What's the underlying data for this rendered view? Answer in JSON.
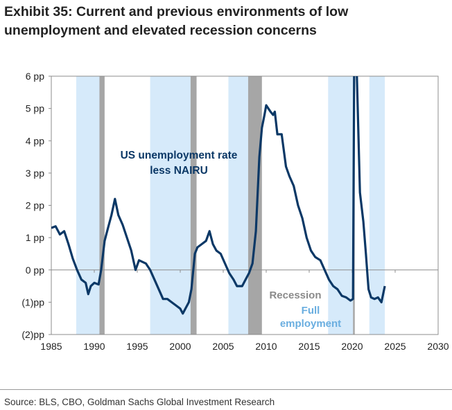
{
  "title": "Exhibit 35: Current and previous environments of low unemployment and elevated recession concerns",
  "source": "Source: BLS, CBO, Goldman Sachs Global Investment Research",
  "chart_data": {
    "type": "line",
    "title": "Exhibit 35: Current and previous environments of low unemployment and elevated recession concerns",
    "xlabel": "",
    "ylabel": "",
    "xlim": [
      1985,
      2030
    ],
    "ylim": [
      -2,
      6
    ],
    "x_ticks": [
      "1985",
      "1990",
      "1995",
      "2000",
      "2005",
      "2010",
      "2015",
      "2020",
      "2025",
      "2030"
    ],
    "y_ticks": [
      {
        "value": 6,
        "label": "6 pp"
      },
      {
        "value": 5,
        "label": "5 pp"
      },
      {
        "value": 4,
        "label": "4 pp"
      },
      {
        "value": 3,
        "label": "3 pp"
      },
      {
        "value": 2,
        "label": "2 pp"
      },
      {
        "value": 1,
        "label": "1 pp"
      },
      {
        "value": 0,
        "label": "0 pp"
      },
      {
        "value": -1,
        "label": "(1)pp"
      },
      {
        "value": -2,
        "label": "(2)pp"
      }
    ],
    "grid": false,
    "series": [
      {
        "name": "US unemployment rate less NAIRU",
        "color": "#0b3866",
        "x": [
          1985.0,
          1985.5,
          1986.0,
          1986.5,
          1987.0,
          1987.5,
          1988.0,
          1988.5,
          1989.0,
          1989.3,
          1989.6,
          1990.0,
          1990.5,
          1990.8,
          1991.2,
          1991.6,
          1992.0,
          1992.4,
          1992.8,
          1993.3,
          1993.8,
          1994.3,
          1994.8,
          1995.2,
          1996.0,
          1996.5,
          1997.0,
          1997.5,
          1998.0,
          1998.5,
          1999.0,
          1999.5,
          2000.0,
          2000.3,
          2000.6,
          2001.0,
          2001.3,
          2001.7,
          2002.0,
          2002.5,
          2003.0,
          2003.4,
          2003.8,
          2004.2,
          2004.7,
          2005.2,
          2005.7,
          2006.2,
          2006.6,
          2007.2,
          2007.6,
          2008.0,
          2008.4,
          2008.8,
          2009.2,
          2009.5,
          2009.8,
          2010.0,
          2010.5,
          2010.8,
          2011.0,
          2011.3,
          2011.8,
          2012.3,
          2012.7,
          2013.2,
          2013.7,
          2014.2,
          2014.7,
          2015.2,
          2015.7,
          2016.3,
          2016.8,
          2017.3,
          2017.8,
          2018.3,
          2018.8,
          2019.3,
          2019.8,
          2020.1,
          2020.3,
          2020.55,
          2020.9,
          2021.3,
          2021.6,
          2021.9,
          2022.2,
          2022.6,
          2023.0,
          2023.4,
          2023.8
        ],
        "values": [
          1.3,
          1.35,
          1.1,
          1.2,
          0.8,
          0.35,
          0.0,
          -0.3,
          -0.4,
          -0.75,
          -0.5,
          -0.4,
          -0.45,
          0.0,
          0.9,
          1.3,
          1.7,
          2.2,
          1.7,
          1.4,
          1.0,
          0.6,
          0.0,
          0.3,
          0.2,
          0.0,
          -0.3,
          -0.6,
          -0.9,
          -0.9,
          -1.0,
          -1.1,
          -1.2,
          -1.35,
          -1.2,
          -1.0,
          -0.6,
          0.5,
          0.7,
          0.8,
          0.9,
          1.2,
          0.8,
          0.6,
          0.5,
          0.2,
          -0.1,
          -0.3,
          -0.5,
          -0.5,
          -0.3,
          -0.1,
          0.2,
          1.2,
          3.5,
          4.4,
          4.8,
          5.1,
          4.9,
          4.8,
          4.9,
          4.2,
          4.2,
          3.2,
          2.9,
          2.6,
          2.0,
          1.6,
          1.0,
          0.6,
          0.4,
          0.3,
          0.0,
          -0.3,
          -0.5,
          -0.6,
          -0.8,
          -0.85,
          -0.95,
          -0.9,
          9.5,
          6.0,
          2.4,
          1.5,
          0.5,
          -0.6,
          -0.85,
          -0.9,
          -0.85,
          -1.0,
          -0.5
        ]
      }
    ],
    "shaded_regions": {
      "recession": {
        "label": "Recession",
        "color": "#a6a6a6",
        "ranges": [
          [
            1990.6,
            1991.2
          ],
          [
            2001.2,
            2001.9
          ],
          [
            2007.9,
            2009.5
          ],
          [
            2020.1,
            2020.3
          ]
        ]
      },
      "full_employment": {
        "label": "Full employment",
        "color": "#d6eafa",
        "label_color": "#6aaee0",
        "ranges": [
          [
            1987.9,
            1990.6
          ],
          [
            1996.5,
            2001.2
          ],
          [
            2005.6,
            2007.9
          ],
          [
            2017.2,
            2020.1
          ],
          [
            2022.0,
            2023.8
          ]
        ]
      }
    },
    "annotations": [
      "US unemployment rate",
      "less NAIRU"
    ]
  }
}
